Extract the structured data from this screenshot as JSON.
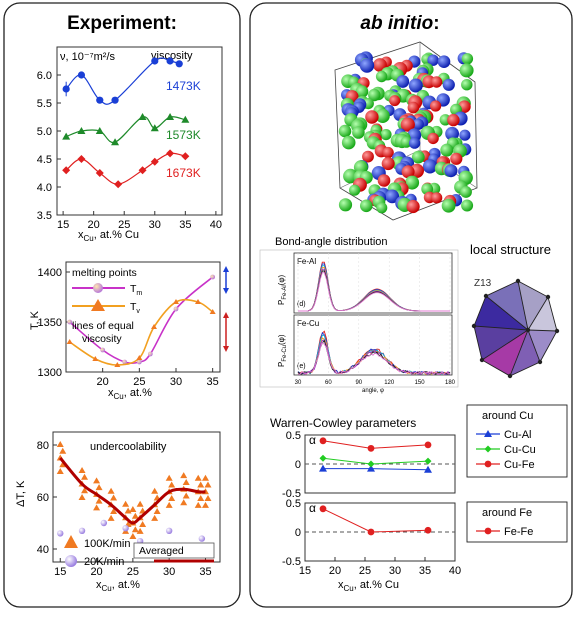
{
  "left_panel": {
    "title": "Experiment:",
    "viscosity": {
      "ylabel": "ν, 10⁻⁷m²/s",
      "label": "viscosity",
      "xlabel_main": "x",
      "xlabel_sub": "Cu",
      "xlabel_rest": ", at.% Cu",
      "yticks": [
        "6.0",
        "5.5",
        "5.0",
        "4.5",
        "4.0",
        "3.5"
      ],
      "xticks": [
        "15",
        "20",
        "25",
        "30",
        "35",
        "40"
      ],
      "series": [
        {
          "name": "1473K",
          "color": "#1a3fd6"
        },
        {
          "name": "1573K",
          "color": "#1e8a2a"
        },
        {
          "name": "1673K",
          "color": "#e02020"
        }
      ]
    },
    "melting": {
      "ylabel": "T, K",
      "legend_melting": "melting points",
      "tm_main": "T",
      "tm_sub": "m",
      "tv_main": "T",
      "tv_sub": "v",
      "lines_label_1": "lines of equal",
      "lines_label_2": "viscosity",
      "yticks": [
        "1400",
        "1350",
        "1300"
      ],
      "xticks": [
        "20",
        "25",
        "30",
        "35"
      ],
      "xlabel_main": "x",
      "xlabel_sub": "Cu",
      "xlabel_rest": ", at.%"
    },
    "undercool": {
      "ylabel": "ΔT, K",
      "label": "undercoolability",
      "yticks": [
        "80",
        "60",
        "40"
      ],
      "xticks": [
        "15",
        "20",
        "25",
        "30",
        "35"
      ],
      "legend_100": "100K/min",
      "legend_20": "20K/min",
      "legend_avg": "Averaged",
      "xlabel_main": "x",
      "xlabel_sub": "Cu",
      "xlabel_rest": ", at.%"
    }
  },
  "right_panel": {
    "title": "ab initio",
    "title_colon": ":",
    "bond_title": "Bond-angle distribution",
    "bond_top_label": "Fe-Al",
    "bond_top_tag": "(d)",
    "bond_top_ylabel_main": "P",
    "bond_top_ylabel_sub": "Fe-Al",
    "bond_top_ylabel_rest": "(φ)",
    "bond_bot_label": "Fe-Cu",
    "bond_bot_tag": "(e)",
    "bond_bot_ylabel_main": "P",
    "bond_bot_ylabel_sub": "Fe-Cu",
    "bond_bot_ylabel_rest": "(φ)",
    "bond_xlabel": "angle, φ",
    "bond_xticks": [
      "30",
      "60",
      "90",
      "120",
      "150",
      "180"
    ],
    "local_structure": "local structure",
    "z13": "Z13",
    "wc_title": "Warren-Cowley parameters",
    "alpha": "α",
    "wc_yticks": [
      "0.5",
      "0",
      "-0.5"
    ],
    "wc_xticks": [
      "15",
      "20",
      "25",
      "30",
      "35",
      "40"
    ],
    "wc_xlabel_main": "x",
    "wc_xlabel_sub": "Cu",
    "wc_xlabel_rest": ", at.% Cu",
    "legend_cu_title": "around Cu",
    "legend_cu_items": [
      {
        "name": "Cu-Al",
        "color": "#1a3fd6"
      },
      {
        "name": "Cu-Cu",
        "color": "#22cc22"
      },
      {
        "name": "Cu-Fe",
        "color": "#e02020"
      }
    ],
    "legend_fe_title": "around Fe",
    "legend_fe_items": [
      {
        "name": "Fe-Fe",
        "color": "#e02020"
      }
    ]
  },
  "chart_data": [
    {
      "type": "scatter",
      "title": "viscosity",
      "ylabel": "ν, 10⁻⁷m²/s",
      "xlabel": "xCu, at.% Cu",
      "xlim": [
        14,
        41
      ],
      "ylim": [
        3.5,
        6.5
      ],
      "series": [
        {
          "name": "1473K",
          "x": [
            15.5,
            18,
            21,
            23.5,
            30,
            32.5,
            34
          ],
          "y": [
            5.75,
            6.0,
            5.55,
            5.55,
            6.25,
            6.25,
            6.2
          ]
        },
        {
          "name": "1573K",
          "x": [
            15.5,
            18,
            21,
            23.5,
            28,
            30,
            32.5,
            35
          ],
          "y": [
            4.9,
            5.0,
            5.0,
            4.8,
            5.25,
            5.05,
            5.25,
            5.2
          ]
        },
        {
          "name": "1673K",
          "x": [
            15.5,
            18,
            21,
            24,
            28,
            30,
            32.5,
            35
          ],
          "y": [
            4.3,
            4.5,
            4.25,
            4.05,
            4.3,
            4.45,
            4.6,
            4.55
          ]
        }
      ]
    },
    {
      "type": "line",
      "ylabel": "T, K",
      "xlabel": "xCu, at.%",
      "xlim": [
        15,
        36
      ],
      "ylim": [
        1300,
        1410
      ],
      "series": [
        {
          "name": "Tm",
          "x": [
            15.5,
            20,
            23,
            25,
            26.5,
            30,
            35
          ],
          "y": [
            1350,
            1322,
            1310,
            1310,
            1318,
            1363,
            1395
          ]
        },
        {
          "name": "Tv",
          "x": [
            15.5,
            19,
            22,
            25,
            27,
            30,
            33,
            35
          ],
          "y": [
            1330,
            1313,
            1307,
            1314,
            1345,
            1370,
            1370,
            1360
          ]
        }
      ]
    },
    {
      "type": "scatter",
      "title": "undercoolability",
      "ylabel": "ΔT, K",
      "xlabel": "xCu, at.%",
      "xlim": [
        14,
        37
      ],
      "ylim": [
        35,
        85
      ],
      "series": [
        {
          "name": "Averaged",
          "x": [
            15,
            18,
            20,
            22,
            24,
            25,
            26,
            28,
            30,
            32,
            34,
            35
          ],
          "y": [
            75,
            65,
            61,
            57,
            52,
            50,
            52,
            57,
            62,
            63,
            62,
            62
          ]
        },
        {
          "name": "20K/min",
          "x": [
            15,
            18,
            21,
            24,
            26,
            30,
            34.5
          ],
          "y": [
            46,
            47,
            50,
            48,
            43,
            47,
            44
          ]
        }
      ]
    },
    {
      "type": "line",
      "title": "Warren-Cowley parameters (around Cu)",
      "xlabel": "xCu, at.% Cu",
      "xlim": [
        15,
        40
      ],
      "ylim": [
        -0.5,
        0.5
      ],
      "series": [
        {
          "name": "Cu-Al",
          "x": [
            18,
            26,
            35.5
          ],
          "y": [
            -0.08,
            -0.08,
            -0.1
          ]
        },
        {
          "name": "Cu-Cu",
          "x": [
            18,
            26,
            35.5
          ],
          "y": [
            0.1,
            0.0,
            0.05
          ]
        },
        {
          "name": "Cu-Fe",
          "x": [
            18,
            26,
            35.5
          ],
          "y": [
            0.4,
            0.27,
            0.33
          ]
        }
      ]
    },
    {
      "type": "line",
      "title": "Warren-Cowley parameters (around Fe)",
      "xlabel": "xCu, at.% Cu",
      "xlim": [
        15,
        40
      ],
      "ylim": [
        -0.5,
        0.5
      ],
      "series": [
        {
          "name": "Fe-Fe",
          "x": [
            18,
            26,
            35.5
          ],
          "y": [
            0.4,
            0.0,
            0.03
          ]
        }
      ]
    }
  ]
}
